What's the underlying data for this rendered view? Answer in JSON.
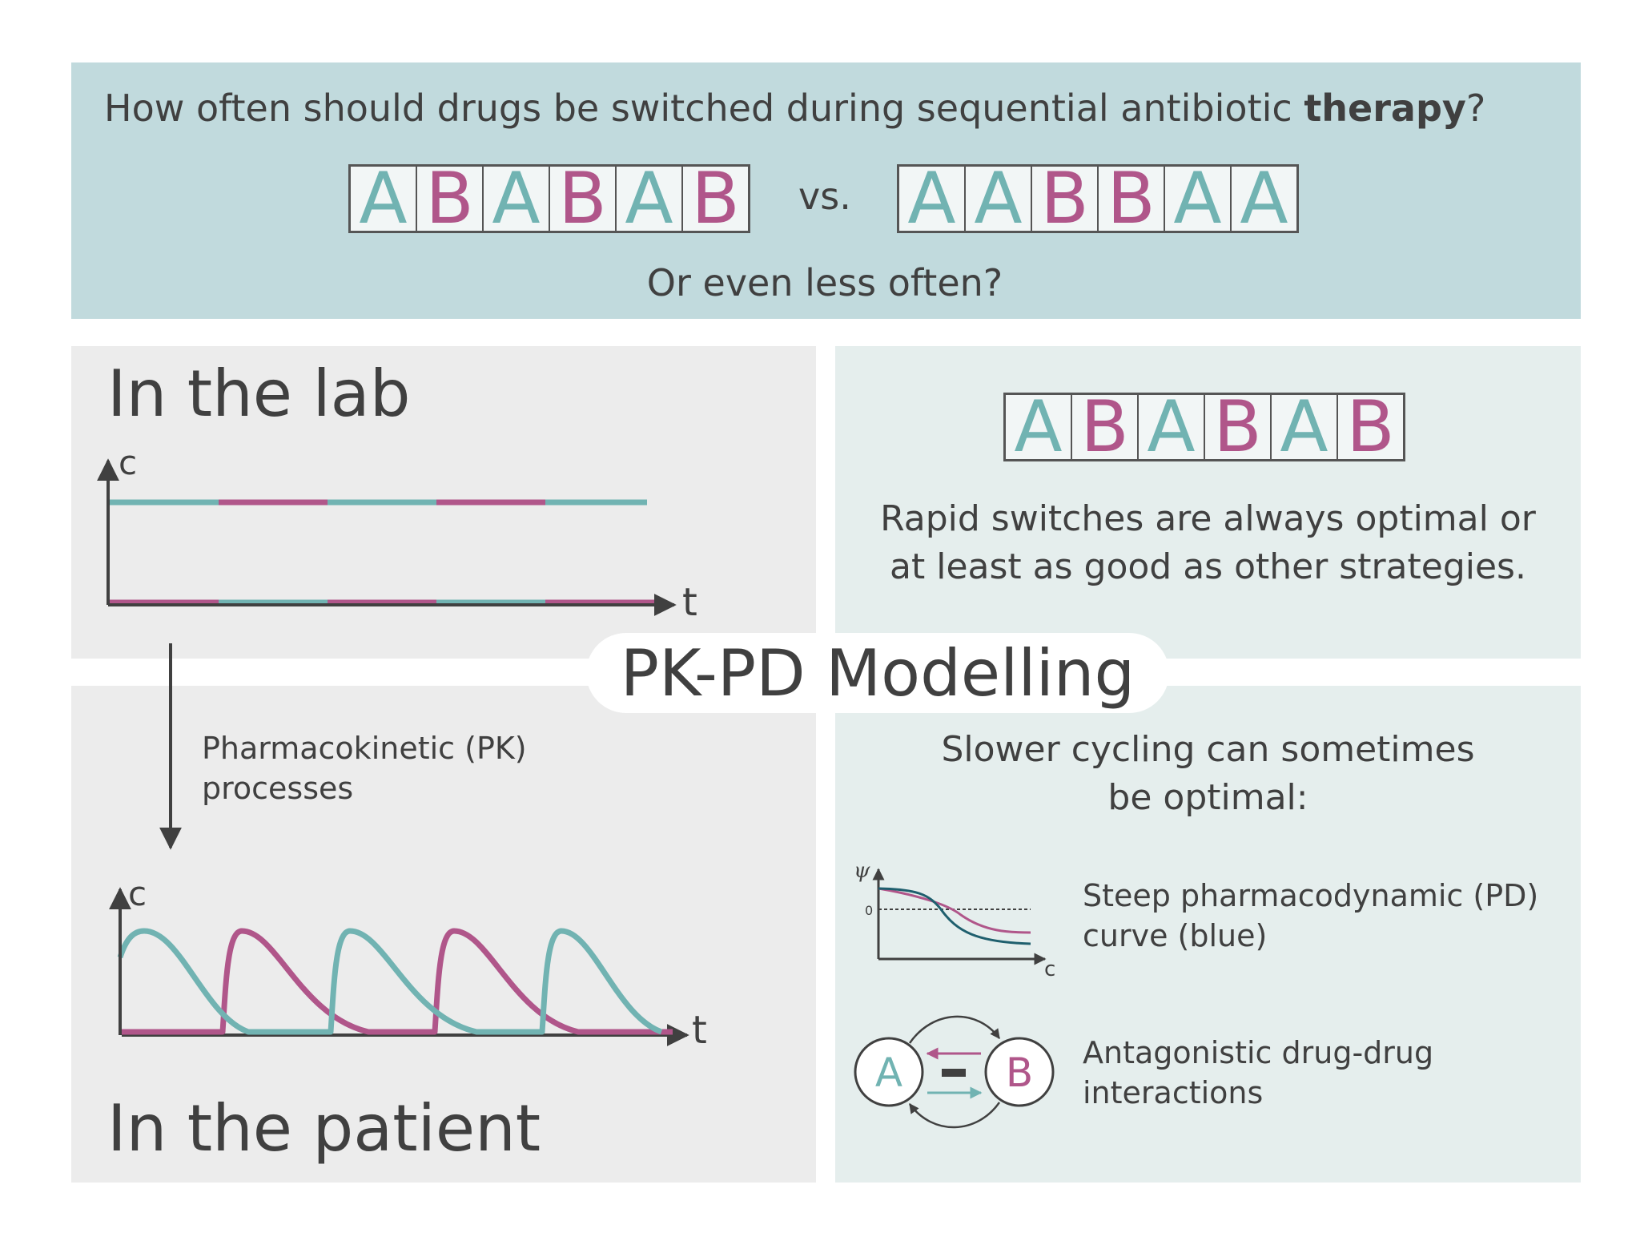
{
  "header": {
    "question_prefix": "How often should drugs be switched during sequential antibiotic ",
    "question_bold": "therapy",
    "question_suffix": "?",
    "sequence_1": [
      "A",
      "B",
      "A",
      "B",
      "A",
      "B"
    ],
    "vs_label": "vs.",
    "sequence_2": [
      "A",
      "A",
      "B",
      "B",
      "A",
      "A"
    ],
    "subquestion": "Or even less often?"
  },
  "lab": {
    "title": "In the lab",
    "y_axis": "c",
    "x_axis": "t"
  },
  "pk": {
    "line1": "Pharmacokinetic (PK)",
    "line2": "processes"
  },
  "patient": {
    "title": "In the patient",
    "y_axis": "c",
    "x_axis": "t"
  },
  "center_label": "PK-PD Modelling",
  "rapid": {
    "sequence": [
      "A",
      "B",
      "A",
      "B",
      "A",
      "B"
    ],
    "line1": "Rapid switches are always optimal or",
    "line2": "at least as good as other strategies."
  },
  "slow": {
    "line1": "Slower cycling can sometimes",
    "line2": "be optimal:",
    "pd_ylabel": "ψ",
    "pd_zero": "0",
    "pd_xlabel": "c",
    "pd_text1": "Steep pharmacodynamic (PD)",
    "pd_text2": "curve (blue)",
    "node_a": "A",
    "node_b": "B",
    "inter_text1": "Antagonistic drug-drug",
    "inter_text2": "interactions"
  },
  "colors": {
    "teal": "#71b3b2",
    "magenta": "#b0568a",
    "dark_blue": "#1f5f6e",
    "axis": "#404040"
  }
}
